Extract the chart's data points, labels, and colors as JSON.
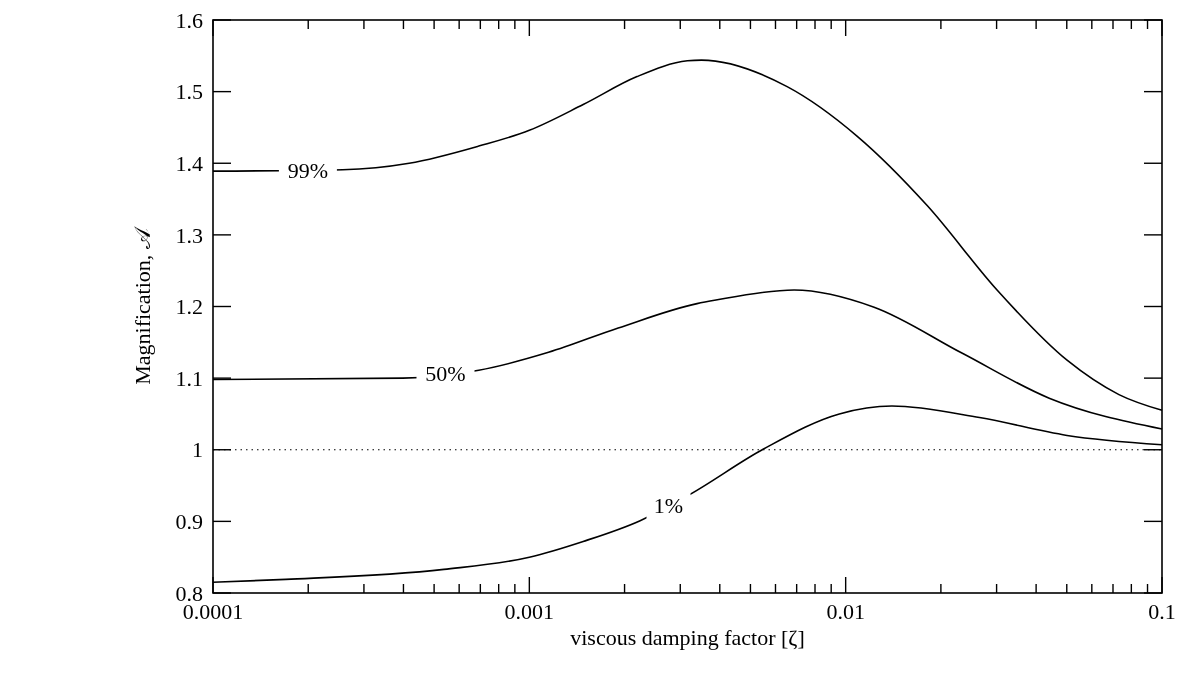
{
  "chart_data": {
    "type": "line",
    "xlabel": "viscous damping factor [ζ]",
    "ylabel": "Magnification, 𝒜",
    "log": "x",
    "line_style": "solid",
    "xlim": [
      0.0001,
      0.1
    ],
    "ylim": [
      0.8,
      1.6
    ],
    "xticks": [
      0.0001,
      {
        "value": 0.0002,
        "label": null
      },
      {
        "value": 0.0003,
        "label": null
      },
      {
        "value": 0.0004,
        "label": null
      },
      {
        "value": 0.0005,
        "label": null
      },
      {
        "value": 0.0006,
        "label": null
      },
      {
        "value": 0.0007,
        "label": null
      },
      {
        "value": 0.0008,
        "label": null
      },
      {
        "value": 0.0009,
        "label": null
      },
      0.001,
      {
        "value": 0.002,
        "label": null
      },
      {
        "value": 0.003,
        "label": null
      },
      {
        "value": 0.004,
        "label": null
      },
      {
        "value": 0.005,
        "label": null
      },
      {
        "value": 0.006,
        "label": null
      },
      {
        "value": 0.007,
        "label": null
      },
      {
        "value": 0.008,
        "label": null
      },
      {
        "value": 0.009,
        "label": null
      },
      0.01,
      {
        "value": 0.02,
        "label": null
      },
      {
        "value": 0.03,
        "label": null
      },
      {
        "value": 0.04,
        "label": null
      },
      {
        "value": 0.05,
        "label": null
      },
      {
        "value": 0.06,
        "label": null
      },
      {
        "value": 0.07,
        "label": null
      },
      {
        "value": 0.08,
        "label": null
      },
      {
        "value": 0.09,
        "label": null
      },
      0.1
    ],
    "yticks": [
      0.8,
      0.9,
      {
        "value": 1,
        "label": "1"
      },
      1.1,
      1.2,
      1.3,
      1.4,
      1.5,
      1.6
    ],
    "ref_lines": [
      {
        "axis": "y",
        "value": 1,
        "color": "#000000",
        "line_style": "dotted"
      }
    ],
    "series": [
      {
        "name": "99%",
        "color": "#000000",
        "x": [
          0.0001,
          0.000257,
          0.000417,
          0.000692,
          0.001,
          0.00148,
          0.00219,
          0.00316,
          0.0035,
          0.00653,
          0.01086,
          0.0181,
          0.0301,
          0.0501,
          0.0731,
          0.1
        ],
        "values": [
          1.389,
          1.391,
          1.4,
          1.424,
          1.446,
          1.482,
          1.521,
          1.543,
          1.544,
          1.507,
          1.438,
          1.341,
          1.223,
          1.125,
          1.077,
          1.055
        ]
      },
      {
        "name": "50%",
        "color": "#000000",
        "x": [
          0.0001,
          0.000398,
          0.000692,
          0.00115,
          0.00191,
          0.00339,
          0.00389,
          0.00687,
          0.0123,
          0.0233,
          0.044,
          0.1
        ],
        "values": [
          1.098,
          1.1,
          1.111,
          1.136,
          1.17,
          1.204,
          1.209,
          1.223,
          1.199,
          1.135,
          1.072,
          1.029
        ]
      },
      {
        "name": "1%",
        "color": "#000000",
        "x": [
          0.0001,
          0.00017,
          0.000537,
          0.001,
          0.00148,
          0.00224,
          0.0032,
          0.0055,
          0.00955,
          0.014,
          0.0265,
          0.0501,
          0.1
        ],
        "values": [
          0.815,
          0.819,
          0.833,
          0.85,
          0.872,
          0.901,
          0.937,
          1.001,
          1.05,
          1.061,
          1.045,
          1.02,
          1.007
        ]
      }
    ]
  }
}
